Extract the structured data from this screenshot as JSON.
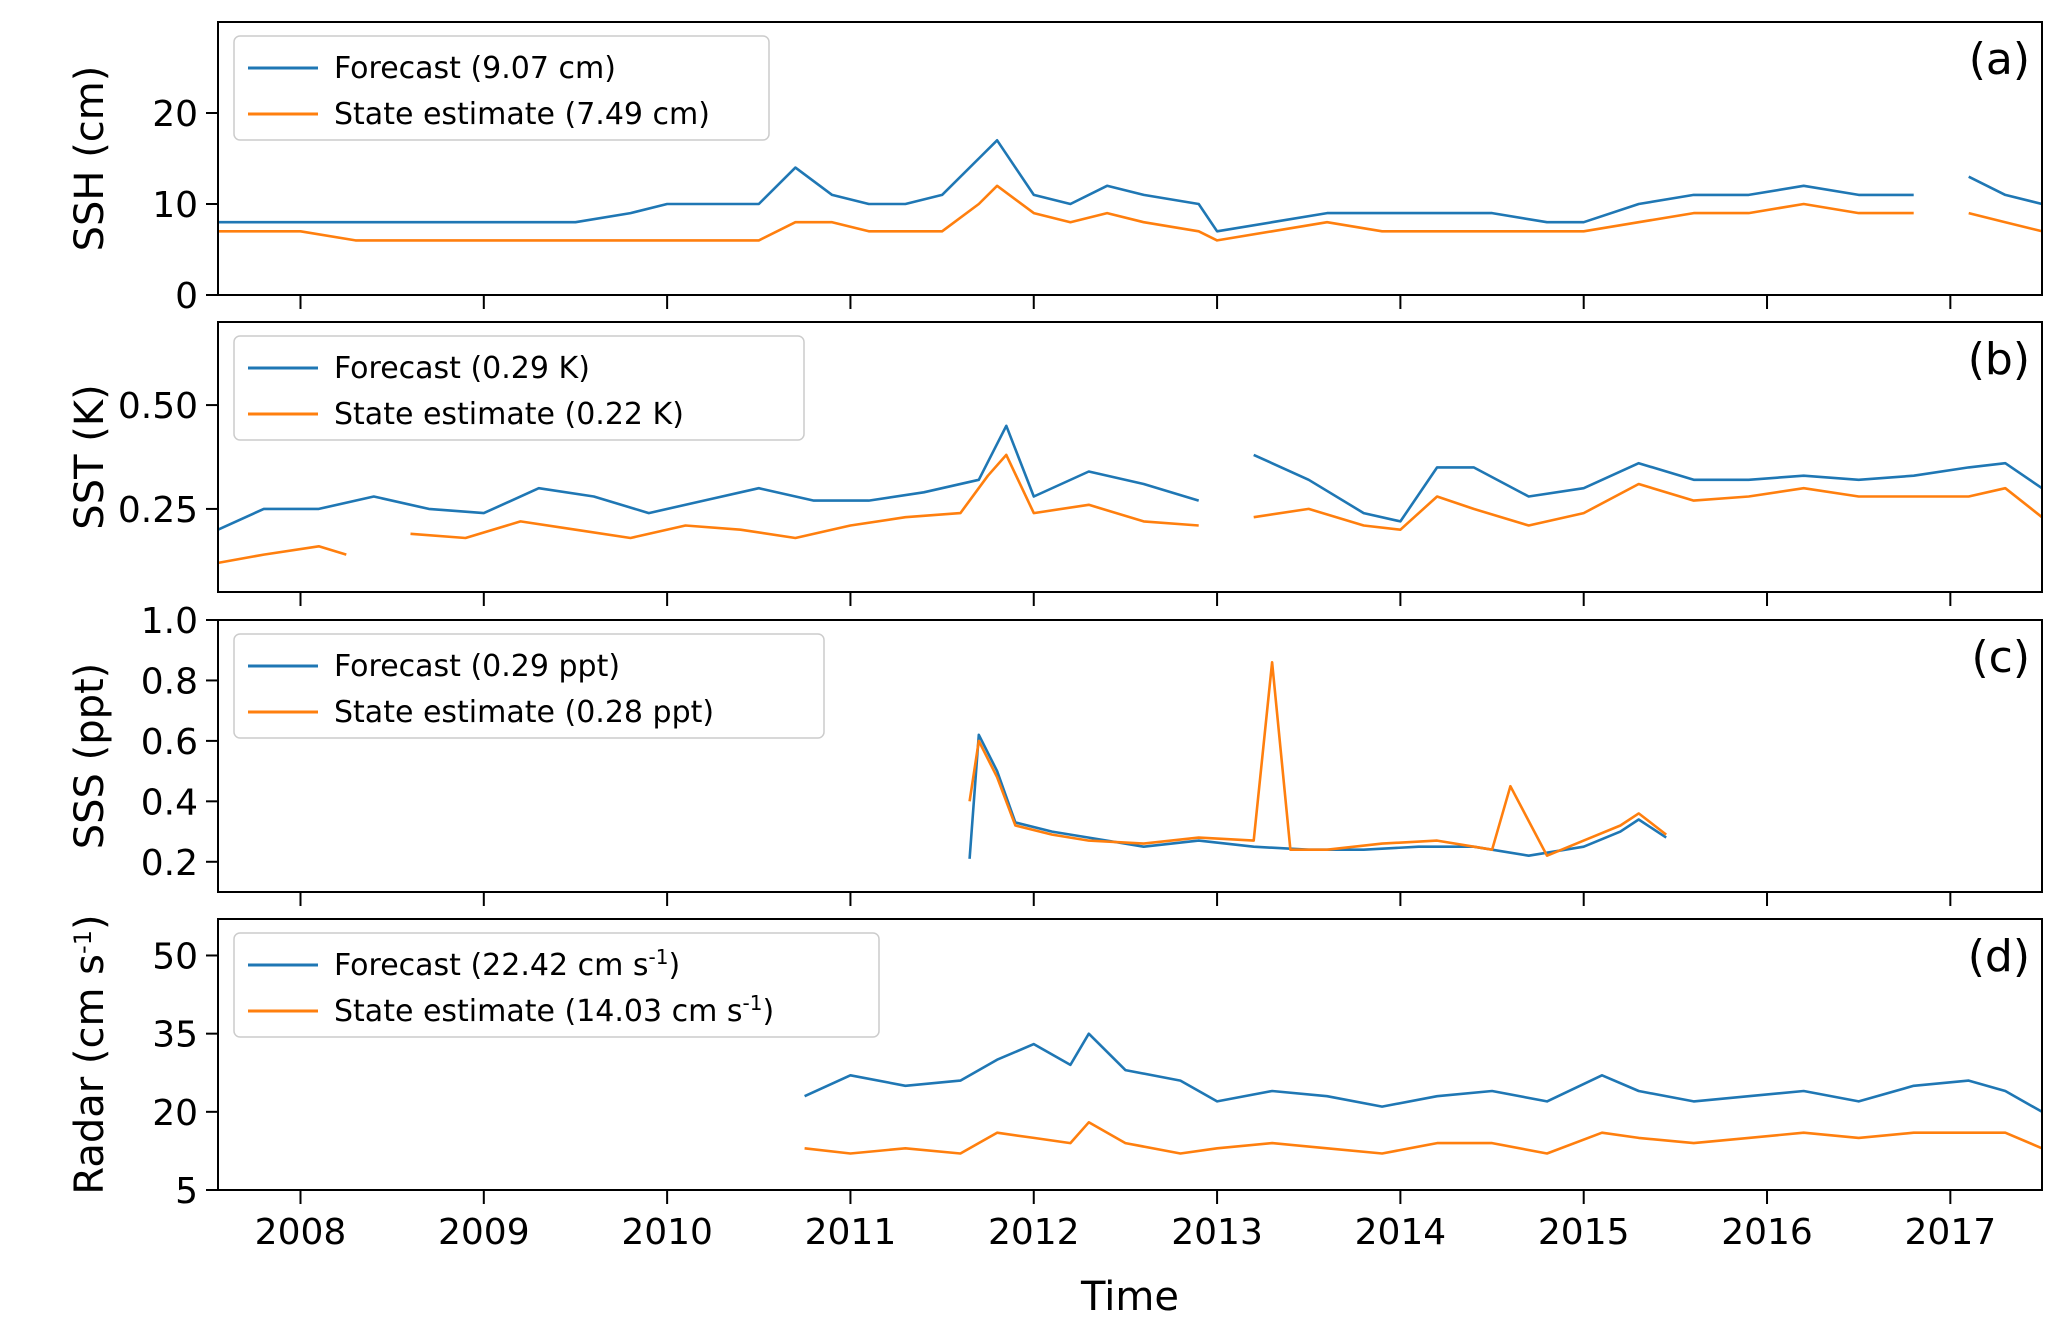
{
  "colors": {
    "forecast": "#1f77b4",
    "state_estimate": "#ff7f0e"
  },
  "shared_x": {
    "label": "Time",
    "range": [
      2007.55,
      2017.5
    ],
    "ticks": [
      2008,
      2009,
      2010,
      2011,
      2012,
      2013,
      2014,
      2015,
      2016,
      2017
    ],
    "tick_labels": [
      "2008",
      "2009",
      "2010",
      "2011",
      "2012",
      "2013",
      "2014",
      "2015",
      "2016",
      "2017"
    ]
  },
  "chart_data": [
    {
      "type": "line",
      "panel": "(a)",
      "ylabel": "SSH (cm)",
      "ylim": [
        0,
        30
      ],
      "yticks": [
        0,
        10,
        20
      ],
      "ytick_labels": [
        "0",
        "10",
        "20"
      ],
      "legend": [
        "Forecast (9.07 cm)",
        "State estimate (7.49 cm)"
      ],
      "series": [
        {
          "name": "Forecast",
          "x": [
            2007.55,
            2007.8,
            2008.0,
            2008.3,
            2008.6,
            2008.9,
            2009.2,
            2009.5,
            2009.8,
            2010.0,
            2010.3,
            2010.5,
            2010.7,
            2010.9,
            2011.1,
            2011.3,
            2011.5,
            2011.7,
            2011.8,
            2012.0,
            2012.2,
            2012.4,
            2012.6,
            2012.9,
            2013.0,
            2013.3,
            2013.6,
            2013.9,
            2014.2,
            2014.5,
            2014.8,
            2015.0,
            2015.3,
            2015.6,
            2015.9,
            2016.2,
            2016.5,
            2016.8,
            2017.0,
            2017.1,
            2017.3,
            2017.5
          ],
          "values": [
            8,
            8,
            8,
            8,
            8,
            8,
            8,
            8,
            9,
            10,
            10,
            10,
            14,
            11,
            10,
            10,
            11,
            15,
            17,
            11,
            10,
            12,
            11,
            10,
            7,
            8,
            9,
            9,
            9,
            9,
            8,
            8,
            10,
            11,
            11,
            12,
            11,
            11,
            null,
            13,
            11,
            10
          ]
        },
        {
          "name": "State estimate",
          "x": [
            2007.55,
            2007.8,
            2008.0,
            2008.3,
            2008.6,
            2008.9,
            2009.2,
            2009.5,
            2009.8,
            2010.0,
            2010.3,
            2010.5,
            2010.7,
            2010.9,
            2011.1,
            2011.3,
            2011.5,
            2011.7,
            2011.8,
            2012.0,
            2012.2,
            2012.4,
            2012.6,
            2012.9,
            2013.0,
            2013.3,
            2013.6,
            2013.9,
            2014.2,
            2014.5,
            2014.8,
            2015.0,
            2015.3,
            2015.6,
            2015.9,
            2016.2,
            2016.5,
            2016.8,
            2017.0,
            2017.1,
            2017.3,
            2017.5
          ],
          "values": [
            7,
            7,
            7,
            6,
            6,
            6,
            6,
            6,
            6,
            6,
            6,
            6,
            8,
            8,
            7,
            7,
            7,
            10,
            12,
            9,
            8,
            9,
            8,
            7,
            6,
            7,
            8,
            7,
            7,
            7,
            7,
            7,
            8,
            9,
            9,
            10,
            9,
            9,
            null,
            9,
            8,
            7
          ]
        }
      ]
    },
    {
      "type": "line",
      "panel": "(b)",
      "ylabel": "SST (K)",
      "ylim": [
        0.05,
        0.7
      ],
      "yticks": [
        0.25,
        0.5
      ],
      "ytick_labels": [
        "0.25",
        "0.50"
      ],
      "legend": [
        "Forecast (0.29 K)",
        "State estimate (0.22 K)"
      ],
      "series": [
        {
          "name": "Forecast",
          "x": [
            2007.55,
            2007.8,
            2008.1,
            2008.4,
            2008.7,
            2009.0,
            2009.3,
            2009.6,
            2009.9,
            2010.2,
            2010.5,
            2010.8,
            2011.1,
            2011.4,
            2011.7,
            2011.85,
            2012.0,
            2012.3,
            2012.6,
            2012.9,
            2013.0,
            2013.2,
            2013.5,
            2013.8,
            2014.0,
            2014.2,
            2014.4,
            2014.7,
            2015.0,
            2015.3,
            2015.6,
            2015.9,
            2016.2,
            2016.5,
            2016.8,
            2017.1,
            2017.3,
            2017.5
          ],
          "values": [
            0.2,
            0.25,
            0.25,
            0.28,
            0.25,
            0.24,
            0.3,
            0.28,
            0.24,
            0.27,
            0.3,
            0.27,
            0.27,
            0.29,
            0.32,
            0.45,
            0.28,
            0.34,
            0.31,
            0.27,
            null,
            0.38,
            0.32,
            0.24,
            0.22,
            0.35,
            0.35,
            0.28,
            0.3,
            0.36,
            0.32,
            0.32,
            0.33,
            0.32,
            0.33,
            0.35,
            0.36,
            0.3
          ]
        },
        {
          "name": "State estimate",
          "x": [
            2007.55,
            2007.8,
            2008.1,
            2008.25,
            2008.3,
            2008.6,
            2008.9,
            2009.2,
            2009.5,
            2009.8,
            2010.1,
            2010.4,
            2010.7,
            2011.0,
            2011.3,
            2011.6,
            2011.75,
            2011.85,
            2012.0,
            2012.3,
            2012.6,
            2012.9,
            2013.0,
            2013.2,
            2013.5,
            2013.8,
            2014.0,
            2014.2,
            2014.4,
            2014.7,
            2015.0,
            2015.3,
            2015.6,
            2015.9,
            2016.2,
            2016.5,
            2016.8,
            2017.1,
            2017.3,
            2017.5
          ],
          "values": [
            0.12,
            0.14,
            0.16,
            0.14,
            null,
            0.19,
            0.18,
            0.22,
            0.2,
            0.18,
            0.21,
            0.2,
            0.18,
            0.21,
            0.23,
            0.24,
            0.33,
            0.38,
            0.24,
            0.26,
            0.22,
            0.21,
            null,
            0.23,
            0.25,
            0.21,
            0.2,
            0.28,
            0.25,
            0.21,
            0.24,
            0.31,
            0.27,
            0.28,
            0.3,
            0.28,
            0.28,
            0.28,
            0.3,
            0.23
          ]
        }
      ]
    },
    {
      "type": "line",
      "panel": "(c)",
      "ylabel": "SSS (ppt)",
      "ylim": [
        0.1,
        1.0
      ],
      "yticks": [
        0.2,
        0.4,
        0.6,
        0.8,
        1.0
      ],
      "ytick_labels": [
        "0.2",
        "0.4",
        "0.6",
        "0.8",
        "1.0"
      ],
      "legend": [
        "Forecast (0.29 ppt)",
        "State estimate (0.28 ppt)"
      ],
      "series": [
        {
          "name": "Forecast",
          "x": [
            2011.65,
            2011.7,
            2011.8,
            2011.9,
            2012.1,
            2012.3,
            2012.6,
            2012.9,
            2013.2,
            2013.5,
            2013.8,
            2014.1,
            2014.4,
            2014.7,
            2015.0,
            2015.2,
            2015.3,
            2015.45
          ],
          "values": [
            0.21,
            0.62,
            0.5,
            0.33,
            0.3,
            0.28,
            0.25,
            0.27,
            0.25,
            0.24,
            0.24,
            0.25,
            0.25,
            0.22,
            0.25,
            0.3,
            0.34,
            0.28
          ]
        },
        {
          "name": "State estimate",
          "x": [
            2011.65,
            2011.7,
            2011.8,
            2011.9,
            2012.1,
            2012.3,
            2012.6,
            2012.9,
            2013.2,
            2013.3,
            2013.4,
            2013.6,
            2013.9,
            2014.2,
            2014.5,
            2014.6,
            2014.8,
            2015.0,
            2015.2,
            2015.3,
            2015.45
          ],
          "values": [
            0.4,
            0.6,
            0.48,
            0.32,
            0.29,
            0.27,
            0.26,
            0.28,
            0.27,
            0.86,
            0.24,
            0.24,
            0.26,
            0.27,
            0.24,
            0.45,
            0.22,
            0.27,
            0.32,
            0.36,
            0.29
          ]
        }
      ]
    },
    {
      "type": "line",
      "panel": "(d)",
      "ylabel": "Radar (cm s",
      "ylabel_sup": "-1",
      "ylabel_end": ")",
      "ylim": [
        5,
        57
      ],
      "yticks": [
        5,
        20,
        35,
        50
      ],
      "ytick_labels": [
        "5",
        "20",
        "35",
        "50"
      ],
      "legend": [
        {
          "text": "Forecast (22.42 cm s",
          "sup": "-1",
          "end": ")"
        },
        {
          "text": "State estimate (14.03 cm s",
          "sup": "-1",
          "end": ")"
        }
      ],
      "series": [
        {
          "name": "Forecast",
          "x": [
            2010.75,
            2011.0,
            2011.3,
            2011.6,
            2011.8,
            2012.0,
            2012.2,
            2012.3,
            2012.5,
            2012.8,
            2013.0,
            2013.3,
            2013.6,
            2013.9,
            2014.2,
            2014.5,
            2014.8,
            2015.1,
            2015.3,
            2015.6,
            2015.9,
            2016.2,
            2016.5,
            2016.8,
            2017.1,
            2017.3,
            2017.5
          ],
          "values": [
            23,
            27,
            25,
            26,
            30,
            33,
            29,
            35,
            28,
            26,
            22,
            24,
            23,
            21,
            23,
            24,
            22,
            27,
            24,
            22,
            23,
            24,
            22,
            25,
            26,
            24,
            20
          ]
        },
        {
          "name": "State estimate",
          "x": [
            2010.75,
            2011.0,
            2011.3,
            2011.6,
            2011.8,
            2012.0,
            2012.2,
            2012.3,
            2012.5,
            2012.8,
            2013.0,
            2013.3,
            2013.6,
            2013.9,
            2014.2,
            2014.5,
            2014.8,
            2015.1,
            2015.3,
            2015.6,
            2015.9,
            2016.2,
            2016.5,
            2016.8,
            2017.1,
            2017.3,
            2017.5
          ],
          "values": [
            13,
            12,
            13,
            12,
            16,
            15,
            14,
            18,
            14,
            12,
            13,
            14,
            13,
            12,
            14,
            14,
            12,
            16,
            15,
            14,
            15,
            16,
            15,
            16,
            16,
            16,
            13
          ]
        }
      ]
    }
  ]
}
